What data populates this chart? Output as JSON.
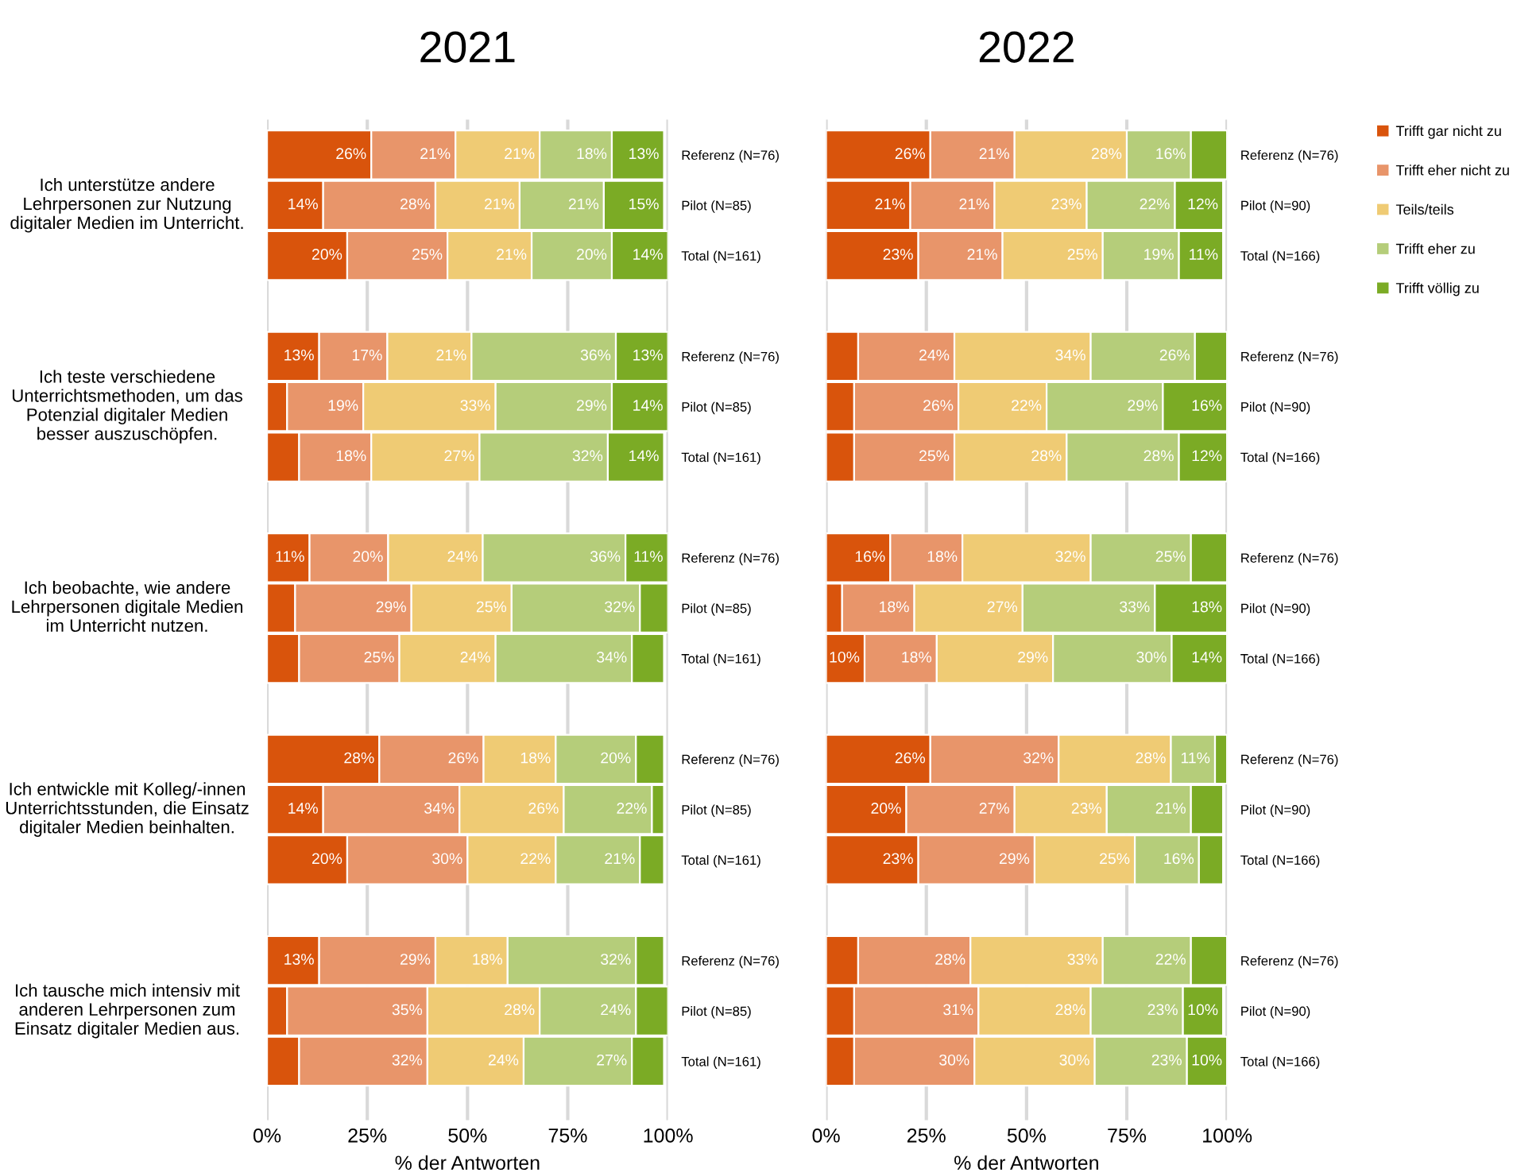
{
  "chart_data": [
    {
      "type": "bar",
      "title": "2021",
      "xlabel": "% der Antworten",
      "orientation": "horizontal",
      "stacked": true,
      "grid": "x",
      "categories": [
        "Referenz (N=76)",
        "Pilot (N=85)",
        "Total (N=161)",
        "Referenz (N=76)",
        "Pilot (N=85)",
        "Total (N=161)",
        "Referenz (N=76)",
        "Pilot (N=85)",
        "Total (N=161)",
        "Referenz (N=76)",
        "Pilot (N=85)",
        "Total (N=161)",
        "Referenz (N=76)",
        "Pilot (N=85)",
        "Total (N=161)"
      ],
      "annotations": [
        "Ich unterstütze andere Lehrpersonen zur Nutzung digitaler Medien im Unterricht.",
        "Ich teste verschiedene Unterrichtsmethoden, um das Potenzial digitaler Medien besser auszuschöpfen.",
        "Ich beobachte, wie andere Lehrpersonen digitale Medien im Unterricht nutzen.",
        "Ich entwickle mit Kolleg/-innen Unterrichtsstunden, die Einsatz digitaler Medien beinhalten.",
        "Ich tausche mich intensiv mit anderen Lehrpersonen zum Einsatz digitaler Medien aus."
      ],
      "xlim": [
        0,
        100
      ],
      "xticks": [
        {
          "value": 0,
          "label": "0%"
        },
        {
          "value": 25,
          "label": "25%"
        },
        {
          "value": 50,
          "label": "50%"
        },
        {
          "value": 75,
          "label": "75%"
        },
        {
          "value": 100,
          "label": "100%"
        }
      ],
      "series": [
        {
          "color": "#d9540c",
          "values": [
            26,
            14,
            20,
            13,
            5,
            8,
            10.6,
            7,
            8,
            28,
            14,
            20,
            13,
            5,
            8
          ],
          "value_labels": [
            "26%",
            "14%",
            "20%",
            "13%",
            null,
            null,
            "11%",
            null,
            null,
            "28%",
            "14%",
            "20%",
            "13%",
            null,
            null
          ]
        },
        {
          "color": "#e8956a",
          "values": [
            21,
            28,
            25,
            17,
            19,
            18,
            19.6,
            29,
            25,
            26,
            34,
            30,
            29,
            35,
            32
          ],
          "value_labels": [
            "21%",
            "28%",
            "25%",
            "17%",
            "19%",
            "18%",
            "20%",
            "29%",
            "25%",
            "26%",
            "34%",
            "30%",
            "29%",
            "35%",
            "32%"
          ]
        },
        {
          "color": "#efcb74",
          "values": [
            21,
            21,
            21,
            21,
            33,
            27,
            23.6,
            25,
            24,
            18,
            26,
            22,
            18,
            28,
            24
          ],
          "value_labels": [
            "21%",
            "21%",
            "21%",
            "21%",
            "33%",
            "27%",
            "24%",
            "25%",
            "24%",
            "18%",
            "26%",
            "22%",
            "18%",
            "28%",
            "24%"
          ]
        },
        {
          "color": "#b5cd7a",
          "values": [
            18,
            21,
            20,
            36,
            29,
            32,
            35.6,
            32,
            34,
            20,
            22,
            21,
            32,
            24,
            27
          ],
          "value_labels": [
            "18%",
            "21%",
            "20%",
            "36%",
            "29%",
            "32%",
            "36%",
            "32%",
            "34%",
            "20%",
            "22%",
            "21%",
            "32%",
            "24%",
            "27%"
          ]
        },
        {
          "color": "#7bab25",
          "values": [
            13,
            15,
            14,
            13,
            14,
            14,
            10.6,
            7,
            8,
            7,
            3,
            6,
            7,
            8,
            8
          ],
          "value_labels": [
            "13%",
            "15%",
            "14%",
            "13%",
            "14%",
            "14%",
            "11%",
            null,
            null,
            null,
            null,
            null,
            null,
            null,
            null
          ]
        }
      ]
    },
    {
      "type": "bar",
      "title": "2022",
      "xlabel": "% der Antworten",
      "orientation": "horizontal",
      "stacked": true,
      "grid": "x",
      "legend": "right",
      "categories": [
        "Referenz (N=76)",
        "Pilot (N=90)",
        "Total (N=166)",
        "Referenz (N=76)",
        "Pilot (N=90)",
        "Total (N=166)",
        "Referenz (N=76)",
        "Pilot (N=90)",
        "Total (N=166)",
        "Referenz (N=76)",
        "Pilot (N=90)",
        "Total (N=166)",
        "Referenz (N=76)",
        "Pilot (N=90)",
        "Total (N=166)"
      ],
      "xlim": [
        0,
        100
      ],
      "xticks": [
        {
          "value": 0,
          "label": "0%"
        },
        {
          "value": 25,
          "label": "25%"
        },
        {
          "value": 50,
          "label": "50%"
        },
        {
          "value": 75,
          "label": "75%"
        },
        {
          "value": 100,
          "label": "100%"
        }
      ],
      "series": [
        {
          "name": "Trifft gar nicht zu",
          "color": "#d9540c",
          "values": [
            26,
            21,
            23,
            8,
            7,
            7,
            16,
            4,
            9.6,
            26,
            20,
            23,
            8,
            7,
            7
          ],
          "value_labels": [
            "26%",
            "21%",
            "23%",
            null,
            null,
            null,
            "16%",
            null,
            "10%",
            "26%",
            "20%",
            "23%",
            null,
            null,
            null
          ]
        },
        {
          "name": "Trifft eher nicht zu",
          "color": "#e8956a",
          "values": [
            21,
            21,
            21,
            24,
            26,
            25,
            18,
            18,
            18,
            32,
            27,
            29,
            28,
            31,
            30
          ],
          "value_labels": [
            "21%",
            "21%",
            "21%",
            "24%",
            "26%",
            "25%",
            "18%",
            "18%",
            "18%",
            "32%",
            "27%",
            "29%",
            "28%",
            "31%",
            "30%"
          ]
        },
        {
          "name": "Teils/teils",
          "color": "#efcb74",
          "values": [
            28,
            23,
            25,
            34,
            22,
            28,
            32,
            27,
            29,
            28,
            23,
            25,
            33,
            28,
            30
          ],
          "value_labels": [
            "28%",
            "23%",
            "25%",
            "34%",
            "22%",
            "28%",
            "32%",
            "27%",
            "29%",
            "28%",
            "23%",
            "25%",
            "33%",
            "28%",
            "30%"
          ]
        },
        {
          "name": "Trifft eher zu",
          "color": "#b5cd7a",
          "values": [
            16,
            22,
            19,
            26,
            29,
            28,
            25,
            33,
            29.6,
            11,
            21,
            16,
            22,
            23,
            23
          ],
          "value_labels": [
            "16%",
            "22%",
            "19%",
            "26%",
            "29%",
            "28%",
            "25%",
            "33%",
            "30%",
            "11%",
            "21%",
            "16%",
            "22%",
            "23%",
            "23%"
          ]
        },
        {
          "name": "Trifft völlig zu",
          "color": "#7bab25",
          "values": [
            9,
            12,
            11,
            8,
            16,
            12,
            9,
            18,
            13.8,
            3,
            8,
            6,
            9,
            10,
            10
          ],
          "value_labels": [
            null,
            "12%",
            "11%",
            null,
            "16%",
            "12%",
            null,
            "18%",
            "14%",
            null,
            null,
            null,
            null,
            "10%",
            "10%"
          ]
        }
      ]
    }
  ]
}
